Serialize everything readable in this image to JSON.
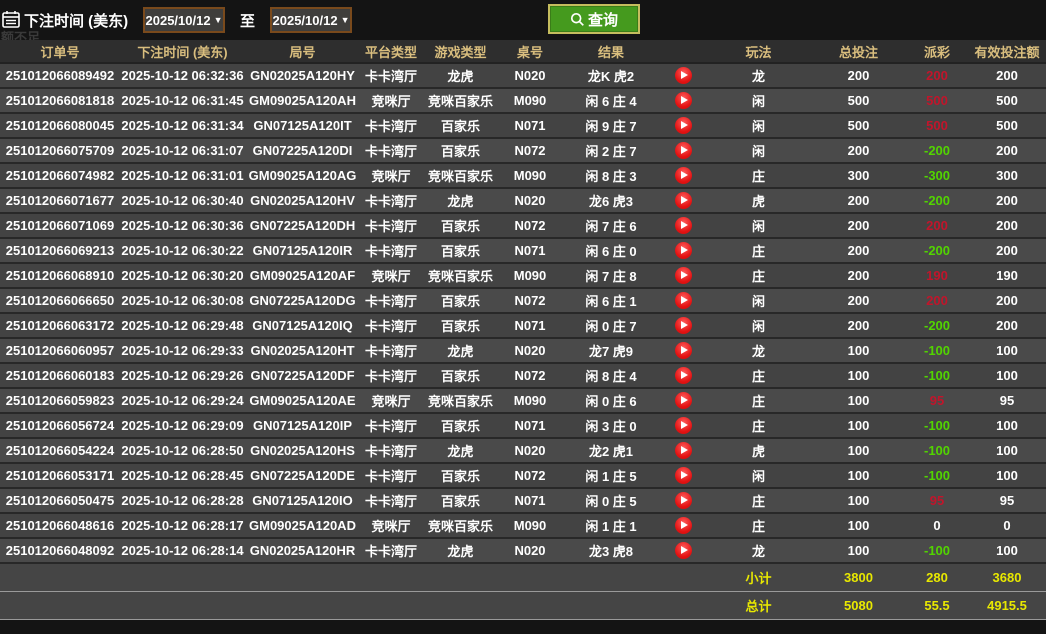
{
  "topbar": {
    "title": "下注时间 (美东)",
    "date_from": "2025/10/12",
    "date_to": "2025/10/12",
    "to_label": "至",
    "search_label": "查询",
    "faint_text": "额不足,"
  },
  "colors": {
    "payout_win_red": "#c1152b",
    "payout_loss_green": "#52d400",
    "footer_yellow": "#e8e800",
    "query_button_green": "#459a1e",
    "header_text_tan": "#d9be7e",
    "datebox_border_brown": "#7a4a1c"
  },
  "table": {
    "headers": [
      "订单号",
      "下注时间 (美东)",
      "局号",
      "平台类型",
      "游戏类型",
      "桌号",
      "结果",
      "",
      "玩法",
      "总投注",
      "派彩",
      "有效投注额"
    ],
    "rows": [
      {
        "order": "251012066089492",
        "time": "2025-10-12 06:32:36",
        "round": "GN02025A120HY",
        "platform": "卡卡湾厅",
        "game": "龙虎",
        "table": "N020",
        "result": "龙K 虎2",
        "bet": "龙",
        "total": "200",
        "payout": "200",
        "payout_color": "red",
        "valid": "200"
      },
      {
        "order": "251012066081818",
        "time": "2025-10-12 06:31:45",
        "round": "GM09025A120AH",
        "platform": "竞咪厅",
        "game": "竞咪百家乐",
        "table": "M090",
        "result": "闲 6 庄 4",
        "bet": "闲",
        "total": "500",
        "payout": "500",
        "payout_color": "red",
        "valid": "500"
      },
      {
        "order": "251012066080045",
        "time": "2025-10-12 06:31:34",
        "round": "GN07125A120IT",
        "platform": "卡卡湾厅",
        "game": "百家乐",
        "table": "N071",
        "result": "闲 9 庄 7",
        "bet": "闲",
        "total": "500",
        "payout": "500",
        "payout_color": "red",
        "valid": "500"
      },
      {
        "order": "251012066075709",
        "time": "2025-10-12 06:31:07",
        "round": "GN07225A120DI",
        "platform": "卡卡湾厅",
        "game": "百家乐",
        "table": "N072",
        "result": "闲 2 庄 7",
        "bet": "闲",
        "total": "200",
        "payout": "-200",
        "payout_color": "green",
        "valid": "200"
      },
      {
        "order": "251012066074982",
        "time": "2025-10-12 06:31:01",
        "round": "GM09025A120AG",
        "platform": "竞咪厅",
        "game": "竞咪百家乐",
        "table": "M090",
        "result": "闲 8 庄 3",
        "bet": "庄",
        "total": "300",
        "payout": "-300",
        "payout_color": "green",
        "valid": "300"
      },
      {
        "order": "251012066071677",
        "time": "2025-10-12 06:30:40",
        "round": "GN02025A120HV",
        "platform": "卡卡湾厅",
        "game": "龙虎",
        "table": "N020",
        "result": "龙6 虎3",
        "bet": "虎",
        "total": "200",
        "payout": "-200",
        "payout_color": "green",
        "valid": "200"
      },
      {
        "order": "251012066071069",
        "time": "2025-10-12 06:30:36",
        "round": "GN07225A120DH",
        "platform": "卡卡湾厅",
        "game": "百家乐",
        "table": "N072",
        "result": "闲 7 庄 6",
        "bet": "闲",
        "total": "200",
        "payout": "200",
        "payout_color": "red",
        "valid": "200"
      },
      {
        "order": "251012066069213",
        "time": "2025-10-12 06:30:22",
        "round": "GN07125A120IR",
        "platform": "卡卡湾厅",
        "game": "百家乐",
        "table": "N071",
        "result": "闲 6 庄 0",
        "bet": "庄",
        "total": "200",
        "payout": "-200",
        "payout_color": "green",
        "valid": "200"
      },
      {
        "order": "251012066068910",
        "time": "2025-10-12 06:30:20",
        "round": "GM09025A120AF",
        "platform": "竞咪厅",
        "game": "竞咪百家乐",
        "table": "M090",
        "result": "闲 7 庄 8",
        "bet": "庄",
        "total": "200",
        "payout": "190",
        "payout_color": "red",
        "valid": "190"
      },
      {
        "order": "251012066066650",
        "time": "2025-10-12 06:30:08",
        "round": "GN07225A120DG",
        "platform": "卡卡湾厅",
        "game": "百家乐",
        "table": "N072",
        "result": "闲 6 庄 1",
        "bet": "闲",
        "total": "200",
        "payout": "200",
        "payout_color": "red",
        "valid": "200"
      },
      {
        "order": "251012066063172",
        "time": "2025-10-12 06:29:48",
        "round": "GN07125A120IQ",
        "platform": "卡卡湾厅",
        "game": "百家乐",
        "table": "N071",
        "result": "闲 0 庄 7",
        "bet": "闲",
        "total": "200",
        "payout": "-200",
        "payout_color": "green",
        "valid": "200"
      },
      {
        "order": "251012066060957",
        "time": "2025-10-12 06:29:33",
        "round": "GN02025A120HT",
        "platform": "卡卡湾厅",
        "game": "龙虎",
        "table": "N020",
        "result": "龙7 虎9",
        "bet": "龙",
        "total": "100",
        "payout": "-100",
        "payout_color": "green",
        "valid": "100"
      },
      {
        "order": "251012066060183",
        "time": "2025-10-12 06:29:26",
        "round": "GN07225A120DF",
        "platform": "卡卡湾厅",
        "game": "百家乐",
        "table": "N072",
        "result": "闲 8 庄 4",
        "bet": "庄",
        "total": "100",
        "payout": "-100",
        "payout_color": "green",
        "valid": "100"
      },
      {
        "order": "251012066059823",
        "time": "2025-10-12 06:29:24",
        "round": "GM09025A120AE",
        "platform": "竞咪厅",
        "game": "竞咪百家乐",
        "table": "M090",
        "result": "闲 0 庄 6",
        "bet": "庄",
        "total": "100",
        "payout": "95",
        "payout_color": "red",
        "valid": "95"
      },
      {
        "order": "251012066056724",
        "time": "2025-10-12 06:29:09",
        "round": "GN07125A120IP",
        "platform": "卡卡湾厅",
        "game": "百家乐",
        "table": "N071",
        "result": "闲 3 庄 0",
        "bet": "庄",
        "total": "100",
        "payout": "-100",
        "payout_color": "green",
        "valid": "100"
      },
      {
        "order": "251012066054224",
        "time": "2025-10-12 06:28:50",
        "round": "GN02025A120HS",
        "platform": "卡卡湾厅",
        "game": "龙虎",
        "table": "N020",
        "result": "龙2 虎1",
        "bet": "虎",
        "total": "100",
        "payout": "-100",
        "payout_color": "green",
        "valid": "100"
      },
      {
        "order": "251012066053171",
        "time": "2025-10-12 06:28:45",
        "round": "GN07225A120DE",
        "platform": "卡卡湾厅",
        "game": "百家乐",
        "table": "N072",
        "result": "闲 1 庄 5",
        "bet": "闲",
        "total": "100",
        "payout": "-100",
        "payout_color": "green",
        "valid": "100"
      },
      {
        "order": "251012066050475",
        "time": "2025-10-12 06:28:28",
        "round": "GN07125A120IO",
        "platform": "卡卡湾厅",
        "game": "百家乐",
        "table": "N071",
        "result": "闲 0 庄 5",
        "bet": "庄",
        "total": "100",
        "payout": "95",
        "payout_color": "red",
        "valid": "95"
      },
      {
        "order": "251012066048616",
        "time": "2025-10-12 06:28:17",
        "round": "GM09025A120AD",
        "platform": "竞咪厅",
        "game": "竞咪百家乐",
        "table": "M090",
        "result": "闲 1 庄 1",
        "bet": "庄",
        "total": "100",
        "payout": "0",
        "payout_color": "white",
        "valid": "0"
      },
      {
        "order": "251012066048092",
        "time": "2025-10-12 06:28:14",
        "round": "GN02025A120HR",
        "platform": "卡卡湾厅",
        "game": "龙虎",
        "table": "N020",
        "result": "龙3 虎8",
        "bet": "龙",
        "total": "100",
        "payout": "-100",
        "payout_color": "green",
        "valid": "100"
      }
    ],
    "subtotal": {
      "label": "小计",
      "total": "3800",
      "payout": "280",
      "valid": "3680"
    },
    "total": {
      "label": "总计",
      "total": "5080",
      "payout": "55.5",
      "valid": "4915.5"
    }
  }
}
